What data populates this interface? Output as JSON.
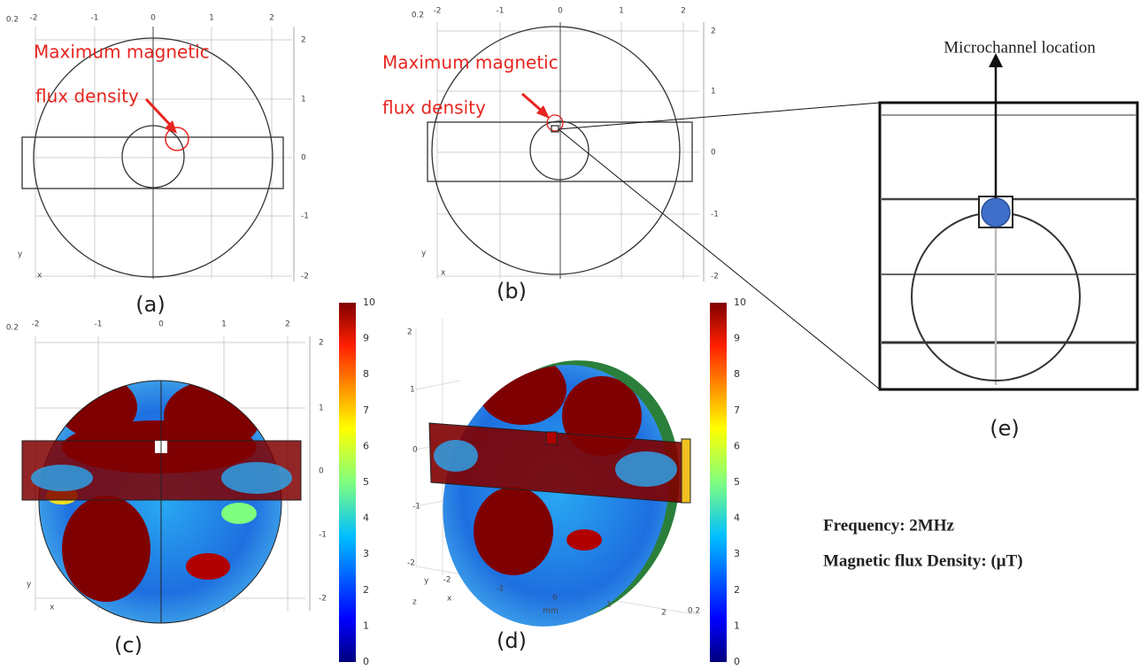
{
  "panels": {
    "a": {
      "top_ticks": [
        "0.2",
        "-2",
        "-1",
        "0",
        "1",
        "2"
      ],
      "right_ticks": [
        "2",
        "1",
        "0",
        "-1",
        "-2"
      ],
      "annotation": [
        "Maximum magnetic",
        "flux density"
      ],
      "axes": [
        "y",
        "x"
      ],
      "caption": "(a)"
    },
    "b": {
      "top_ticks": [
        "0.2",
        "-2",
        "-1",
        "0",
        "1",
        "2"
      ],
      "right_ticks": [
        "2",
        "1",
        "0",
        "-1",
        "-2"
      ],
      "annotation": [
        "Maximum magnetic",
        "flux density"
      ],
      "axes": [
        "y",
        "x"
      ],
      "caption": "(b)"
    },
    "c": {
      "top_ticks": [
        "0.2",
        "-2",
        "-1",
        "0",
        "1",
        "2"
      ],
      "right_ticks": [
        "2",
        "1",
        "0",
        "-1",
        "-2"
      ],
      "axes": [
        "y",
        "x"
      ],
      "colorbar": [
        "10",
        "9",
        "8",
        "7",
        "6",
        "5",
        "4",
        "3",
        "2",
        "1",
        "0"
      ],
      "caption": "(c)"
    },
    "d": {
      "left_ticks": [
        "2",
        "1",
        "0",
        "-1",
        "-2"
      ],
      "bottom_ticks": [
        "-2",
        "-1",
        "0",
        "1",
        "2",
        "0.2"
      ],
      "unit": "mm",
      "axes": [
        "y",
        "z",
        "x"
      ],
      "colorbar": [
        "10",
        "9",
        "8",
        "7",
        "6",
        "5",
        "4",
        "3",
        "2",
        "1",
        "0"
      ],
      "caption": "(d)"
    },
    "e": {
      "label": "Microchannel location",
      "caption": "(e)"
    }
  },
  "notes": {
    "frequency": "Frequency: 2MHz",
    "unit": "Magnetic flux Density: (μT)"
  }
}
